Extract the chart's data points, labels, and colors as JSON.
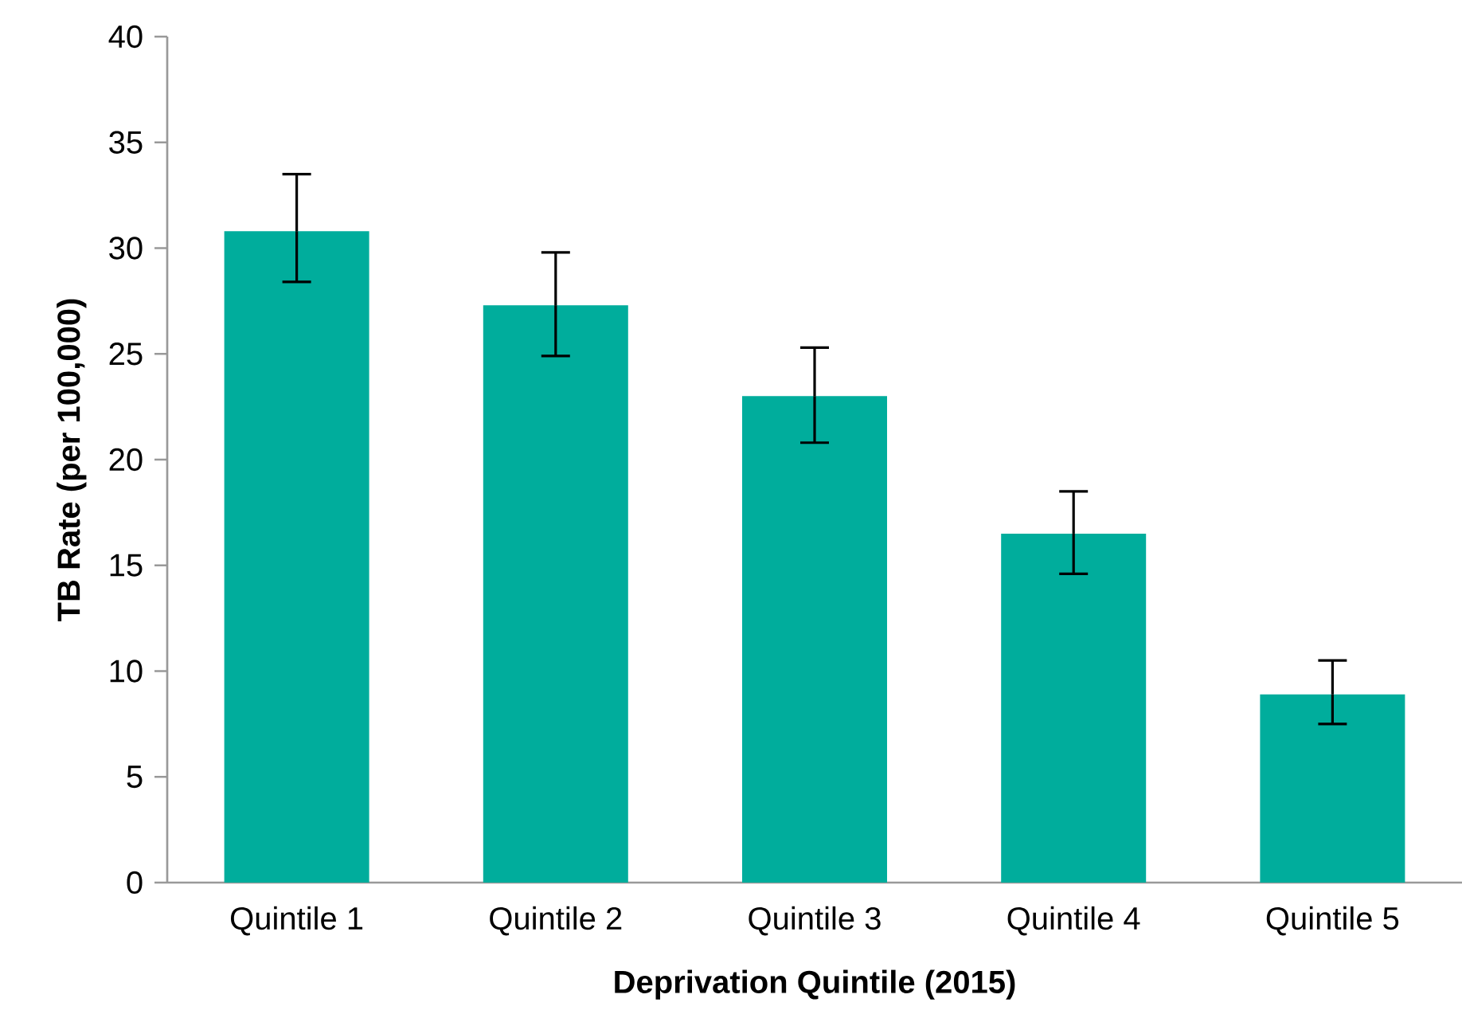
{
  "chart_data": {
    "type": "bar",
    "xlabel": "Deprivation Quintile (2015)",
    "ylabel": "TB Rate (per 100,000)",
    "categories": [
      "Quintile 1",
      "Quintile 2",
      "Quintile 3",
      "Quintile 4",
      "Quintile 5"
    ],
    "values": [
      30.8,
      27.3,
      23.0,
      16.5,
      8.9
    ],
    "errors": [
      [
        28.4,
        33.5
      ],
      [
        24.9,
        29.8
      ],
      [
        20.8,
        25.3
      ],
      [
        14.6,
        18.5
      ],
      [
        7.5,
        10.5
      ]
    ],
    "color": "#00ad9c",
    "ylim": [
      0,
      40
    ],
    "yticks": [
      0,
      5,
      10,
      15,
      20,
      25,
      30,
      35,
      40
    ],
    "grid": false
  }
}
